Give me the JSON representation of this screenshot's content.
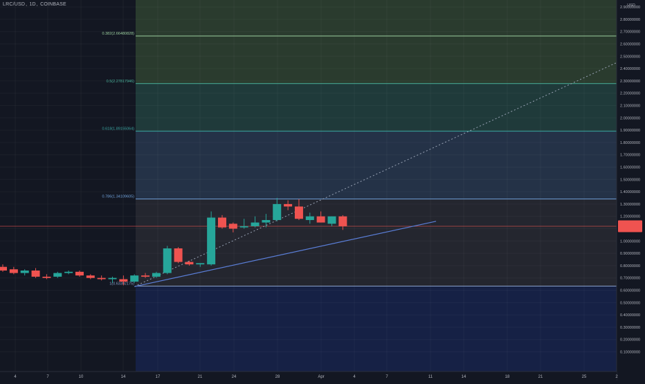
{
  "header": {
    "symbol": "LRC/USD",
    "interval": "1D",
    "exchange": "COINBASE",
    "separator": ", "
  },
  "price_axis_unit": "USD",
  "colors": {
    "background": "#131722",
    "up": "#26a69a",
    "down": "#ef5350",
    "trendline": "#5b7fd9",
    "fib_label": "#26a69a",
    "zone_382_top": "#2a3b2e",
    "zone_5": "#1f3a3a",
    "zone_618": "#1b3438",
    "zone_786": "#243247",
    "zone_1": "#24262f",
    "zone_below": "#162145"
  },
  "chart_data": {
    "type": "candlestick",
    "title": "",
    "ylim": [
      0.05,
      3.0
    ],
    "y_ticks": [
      "0.10000000",
      "0.20000000",
      "0.30000000",
      "0.40000000",
      "0.50000000",
      "0.60000000",
      "0.70000000",
      "0.80000000",
      "0.90000000",
      "1.00000000",
      "1.10000000",
      "1.20000000",
      "1.30000000",
      "1.40000000",
      "1.50000000",
      "1.60000000",
      "1.70000000",
      "1.80000000",
      "1.90000000",
      "2.00000000",
      "2.10000000",
      "2.20000000",
      "2.30000000",
      "2.40000000",
      "2.50000000",
      "2.60000000",
      "2.70000000",
      "2.80000000",
      "2.90000000",
      "3.00000000"
    ],
    "x_ticks": [
      "4",
      "7",
      "10",
      "14",
      "17",
      "21",
      "24",
      "28",
      "Apr",
      "4",
      "7",
      "11",
      "14",
      "18",
      "21",
      "25",
      "2"
    ],
    "candles": [
      {
        "o": 0.79,
        "h": 0.81,
        "l": 0.75,
        "c": 0.76
      },
      {
        "o": 0.77,
        "h": 0.79,
        "l": 0.73,
        "c": 0.74
      },
      {
        "o": 0.74,
        "h": 0.77,
        "l": 0.72,
        "c": 0.76
      },
      {
        "o": 0.76,
        "h": 0.78,
        "l": 0.7,
        "c": 0.71
      },
      {
        "o": 0.71,
        "h": 0.73,
        "l": 0.69,
        "c": 0.7
      },
      {
        "o": 0.71,
        "h": 0.75,
        "l": 0.7,
        "c": 0.74
      },
      {
        "o": 0.74,
        "h": 0.76,
        "l": 0.73,
        "c": 0.75
      },
      {
        "o": 0.75,
        "h": 0.76,
        "l": 0.71,
        "c": 0.72
      },
      {
        "o": 0.72,
        "h": 0.73,
        "l": 0.69,
        "c": 0.7
      },
      {
        "o": 0.7,
        "h": 0.72,
        "l": 0.68,
        "c": 0.69
      },
      {
        "o": 0.69,
        "h": 0.71,
        "l": 0.66,
        "c": 0.7
      },
      {
        "o": 0.69,
        "h": 0.72,
        "l": 0.64,
        "c": 0.67
      },
      {
        "o": 0.67,
        "h": 0.73,
        "l": 0.66,
        "c": 0.72
      },
      {
        "o": 0.72,
        "h": 0.74,
        "l": 0.7,
        "c": 0.71
      },
      {
        "o": 0.71,
        "h": 0.75,
        "l": 0.7,
        "c": 0.74
      },
      {
        "o": 0.74,
        "h": 0.96,
        "l": 0.73,
        "c": 0.94
      },
      {
        "o": 0.94,
        "h": 0.95,
        "l": 0.82,
        "c": 0.83
      },
      {
        "o": 0.83,
        "h": 0.84,
        "l": 0.8,
        "c": 0.81
      },
      {
        "o": 0.81,
        "h": 0.82,
        "l": 0.79,
        "c": 0.82
      },
      {
        "o": 0.81,
        "h": 1.24,
        "l": 0.8,
        "c": 1.19
      },
      {
        "o": 1.19,
        "h": 1.21,
        "l": 1.1,
        "c": 1.11
      },
      {
        "o": 1.14,
        "h": 1.15,
        "l": 1.07,
        "c": 1.1
      },
      {
        "o": 1.11,
        "h": 1.18,
        "l": 1.1,
        "c": 1.12
      },
      {
        "o": 1.12,
        "h": 1.2,
        "l": 1.11,
        "c": 1.15
      },
      {
        "o": 1.15,
        "h": 1.22,
        "l": 1.11,
        "c": 1.17
      },
      {
        "o": 1.17,
        "h": 1.35,
        "l": 1.16,
        "c": 1.3
      },
      {
        "o": 1.3,
        "h": 1.33,
        "l": 1.25,
        "c": 1.28
      },
      {
        "o": 1.28,
        "h": 1.34,
        "l": 1.17,
        "c": 1.18
      },
      {
        "o": 1.17,
        "h": 1.23,
        "l": 1.14,
        "c": 1.2
      },
      {
        "o": 1.2,
        "h": 1.24,
        "l": 1.15,
        "c": 1.15
      },
      {
        "o": 1.14,
        "h": 1.2,
        "l": 1.12,
        "c": 1.2
      },
      {
        "o": 1.2,
        "h": 1.21,
        "l": 1.09,
        "c": 1.12
      }
    ],
    "current_price": 1.12,
    "fib_levels": [
      {
        "label": "0.382(2.66480828)",
        "value": 2.66480828
      },
      {
        "label": "0.5(2.27817946)",
        "value": 2.27817946
      },
      {
        "label": "0.618(1.89155064)",
        "value": 1.89155064
      },
      {
        "label": "0.786(1.34109605)",
        "value": 1.34109605
      },
      {
        "label": "1(0.63392175)",
        "value": 0.63392175
      }
    ],
    "trendline": {
      "from": {
        "bar": 12,
        "price": 0.63
      },
      "to": {
        "bar": 39.5,
        "price": 1.16
      }
    },
    "projection": {
      "from": {
        "bar": 12,
        "price": 0.63
      },
      "to": {
        "bar": 56,
        "price": 2.45
      }
    }
  }
}
